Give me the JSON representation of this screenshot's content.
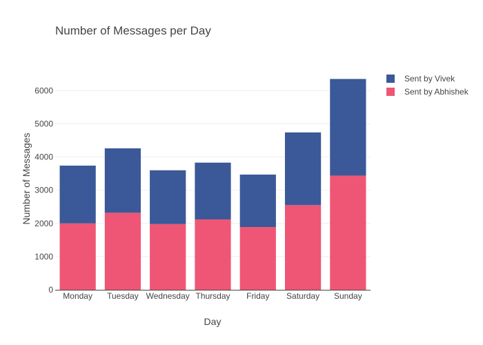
{
  "chart_data": {
    "type": "bar",
    "stacked": true,
    "title": "Number of Messages per Day",
    "xlabel": "Day",
    "ylabel": "Number of Messages",
    "categories": [
      "Monday",
      "Tuesday",
      "Wednesday",
      "Thursday",
      "Friday",
      "Saturday",
      "Sunday"
    ],
    "series": [
      {
        "name": "Sent by Abhishek",
        "color": "#ef5675",
        "values": [
          2000,
          2320,
          1980,
          2120,
          1890,
          2550,
          3440
        ]
      },
      {
        "name": "Sent by Vivek",
        "color": "#3b5998",
        "values": [
          1740,
          1940,
          1620,
          1710,
          1580,
          2190,
          2910
        ]
      }
    ],
    "legend_order": [
      "Sent by Vivek",
      "Sent by Abhishek"
    ],
    "yticks": [
      0,
      1000,
      2000,
      3000,
      4000,
      5000,
      6000
    ],
    "ylim": [
      0,
      6650
    ],
    "grid": true,
    "legend_position": "top-right"
  }
}
